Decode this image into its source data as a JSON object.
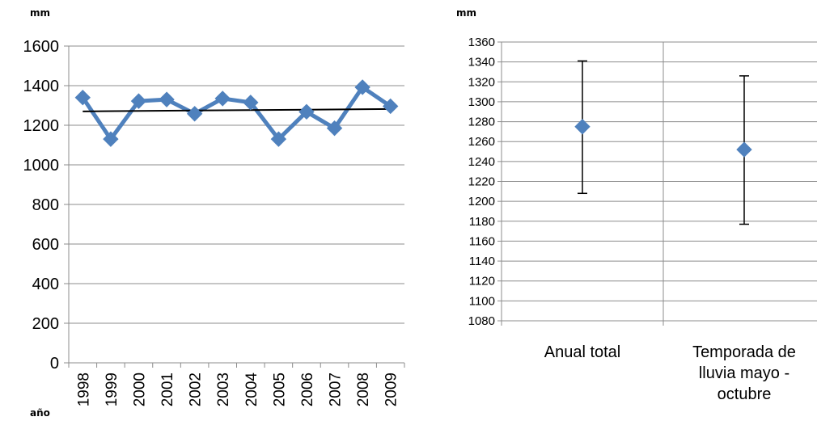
{
  "chart_data": [
    {
      "type": "line",
      "ylabel": "mm",
      "xlabel": "año",
      "x": [
        "1998",
        "1999",
        "2000",
        "2001",
        "2002",
        "2003",
        "2004",
        "2005",
        "2006",
        "2007",
        "2008",
        "2009"
      ],
      "series": [
        {
          "values": [
            1340,
            1130,
            1322,
            1330,
            1258,
            1335,
            1315,
            1130,
            1268,
            1185,
            1392,
            1296
          ],
          "color": "#4F81BD",
          "marker": "diamond"
        }
      ],
      "trendline": {
        "start": 1270,
        "end": 1282,
        "color": "#000000"
      },
      "ylim": [
        0,
        1600
      ],
      "yticks": [
        0,
        200,
        400,
        600,
        800,
        1000,
        1200,
        1400,
        1600
      ],
      "grid": true
    },
    {
      "type": "scatter",
      "ylabel": "mm",
      "categories": [
        "Anual total",
        "Temporada de lluvia mayo - octubre"
      ],
      "category_lines": [
        [
          "Anual total"
        ],
        [
          "Temporada de",
          "lluvia mayo -",
          "octubre"
        ]
      ],
      "values": [
        1275,
        1252
      ],
      "error_low": [
        1208,
        1177
      ],
      "error_high": [
        1341,
        1326
      ],
      "color": "#4F81BD",
      "marker": "diamond",
      "ylim": [
        1080,
        1360
      ],
      "yticks": [
        1080,
        1100,
        1120,
        1140,
        1160,
        1180,
        1200,
        1220,
        1240,
        1260,
        1280,
        1300,
        1320,
        1340,
        1360
      ],
      "grid": true
    }
  ]
}
